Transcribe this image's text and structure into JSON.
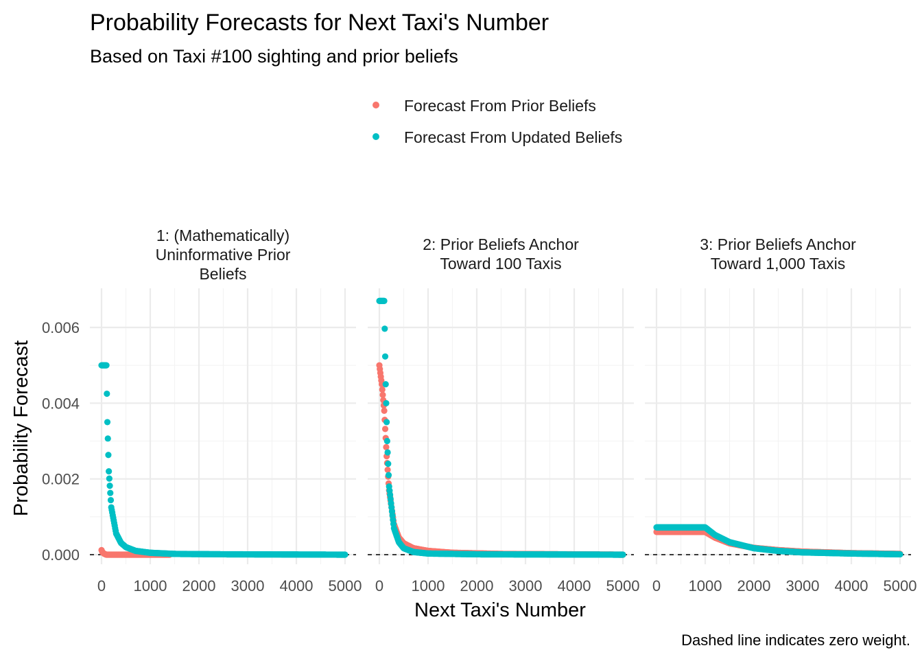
{
  "chart_data": {
    "type": "scatter",
    "title": "Probability Forecasts for Next Taxi's Number",
    "subtitle": "Based on Taxi #100 sighting and prior beliefs",
    "xlabel": "Next Taxi's Number",
    "ylabel": "Probability Forecast",
    "caption": "Dashed line indicates zero weight.",
    "legend_position": "top",
    "xlim": [
      0,
      5000
    ],
    "ylim": [
      0,
      0.007
    ],
    "x_ticks": [
      "0",
      "1000",
      "2000",
      "3000",
      "4000",
      "5000"
    ],
    "y_ticks": [
      "0.000",
      "0.002",
      "0.004",
      "0.006"
    ],
    "grid": true,
    "reference_line": {
      "y": 0,
      "style": "dashed"
    },
    "series": [
      {
        "name": "Forecast From Prior Beliefs",
        "color": "#F8766D"
      },
      {
        "name": "Forecast From Updated Beliefs",
        "color": "#00BFC4"
      }
    ],
    "panels": [
      {
        "label_lines": [
          "1: (Mathematically)",
          "Uninformative Prior",
          "Beliefs"
        ],
        "series": [
          {
            "name": "Forecast From Prior Beliefs",
            "points": [
              [
                0,
                0.00012
              ],
              [
                20,
                6e-05
              ],
              [
                60,
                2e-05
              ],
              [
                100,
                0.0
              ],
              [
                300,
                0.0
              ],
              [
                600,
                0.0
              ],
              [
                1000,
                0.0
              ],
              [
                1400,
                0.0
              ]
            ]
          },
          {
            "name": "Forecast From Updated Beliefs",
            "points": [
              [
                0,
                0.005
              ],
              [
                50,
                0.005
              ],
              [
                100,
                0.005
              ],
              [
                120,
                0.0035
              ],
              [
                150,
                0.0022
              ],
              [
                200,
                0.00125
              ],
              [
                300,
                0.00056
              ],
              [
                400,
                0.00031
              ],
              [
                500,
                0.0002
              ],
              [
                700,
                0.0001
              ],
              [
                1000,
                5e-05
              ],
              [
                1500,
                2e-05
              ],
              [
                2500,
                1e-05
              ],
              [
                5000,
                0.0
              ]
            ]
          }
        ]
      },
      {
        "label_lines": [
          "2: Prior Beliefs Anchor",
          "Toward 100 Taxis"
        ],
        "series": [
          {
            "name": "Forecast From Prior Beliefs",
            "points": [
              [
                0,
                0.005
              ],
              [
                50,
                0.0045
              ],
              [
                100,
                0.0038
              ],
              [
                150,
                0.0026
              ],
              [
                200,
                0.0017
              ],
              [
                300,
                0.0008
              ],
              [
                400,
                0.00045
              ],
              [
                500,
                0.0003
              ],
              [
                700,
                0.00017
              ],
              [
                1000,
                0.0001
              ],
              [
                1500,
                5e-05
              ],
              [
                2500,
                2e-05
              ],
              [
                5000,
                0.0
              ]
            ]
          },
          {
            "name": "Forecast From Updated Beliefs",
            "points": [
              [
                0,
                0.0067
              ],
              [
                50,
                0.0067
              ],
              [
                100,
                0.0067
              ],
              [
                130,
                0.0045
              ],
              [
                160,
                0.003
              ],
              [
                200,
                0.0018
              ],
              [
                300,
                0.0007
              ],
              [
                400,
                0.00033
              ],
              [
                500,
                0.00017
              ],
              [
                700,
                7e-05
              ],
              [
                1000,
                3e-05
              ],
              [
                2000,
                1e-05
              ],
              [
                5000,
                0.0
              ]
            ]
          }
        ]
      },
      {
        "label_lines": [
          "3: Prior Beliefs Anchor",
          "Toward 1,000 Taxis"
        ],
        "series": [
          {
            "name": "Forecast From Prior Beliefs",
            "points": [
              [
                0,
                0.0006
              ],
              [
                500,
                0.0006
              ],
              [
                1000,
                0.0006
              ],
              [
                1200,
                0.00045
              ],
              [
                1500,
                0.0003
              ],
              [
                2000,
                0.00018
              ],
              [
                2500,
                0.00012
              ],
              [
                3000,
                8e-05
              ],
              [
                4000,
                4e-05
              ],
              [
                5000,
                2e-05
              ]
            ]
          },
          {
            "name": "Forecast From Updated Beliefs",
            "points": [
              [
                0,
                0.00072
              ],
              [
                500,
                0.00072
              ],
              [
                1000,
                0.00072
              ],
              [
                1200,
                0.00052
              ],
              [
                1500,
                0.00033
              ],
              [
                2000,
                0.00017
              ],
              [
                2500,
                0.0001
              ],
              [
                3000,
                6e-05
              ],
              [
                4000,
                3e-05
              ],
              [
                5000,
                1e-05
              ]
            ]
          }
        ]
      }
    ]
  }
}
